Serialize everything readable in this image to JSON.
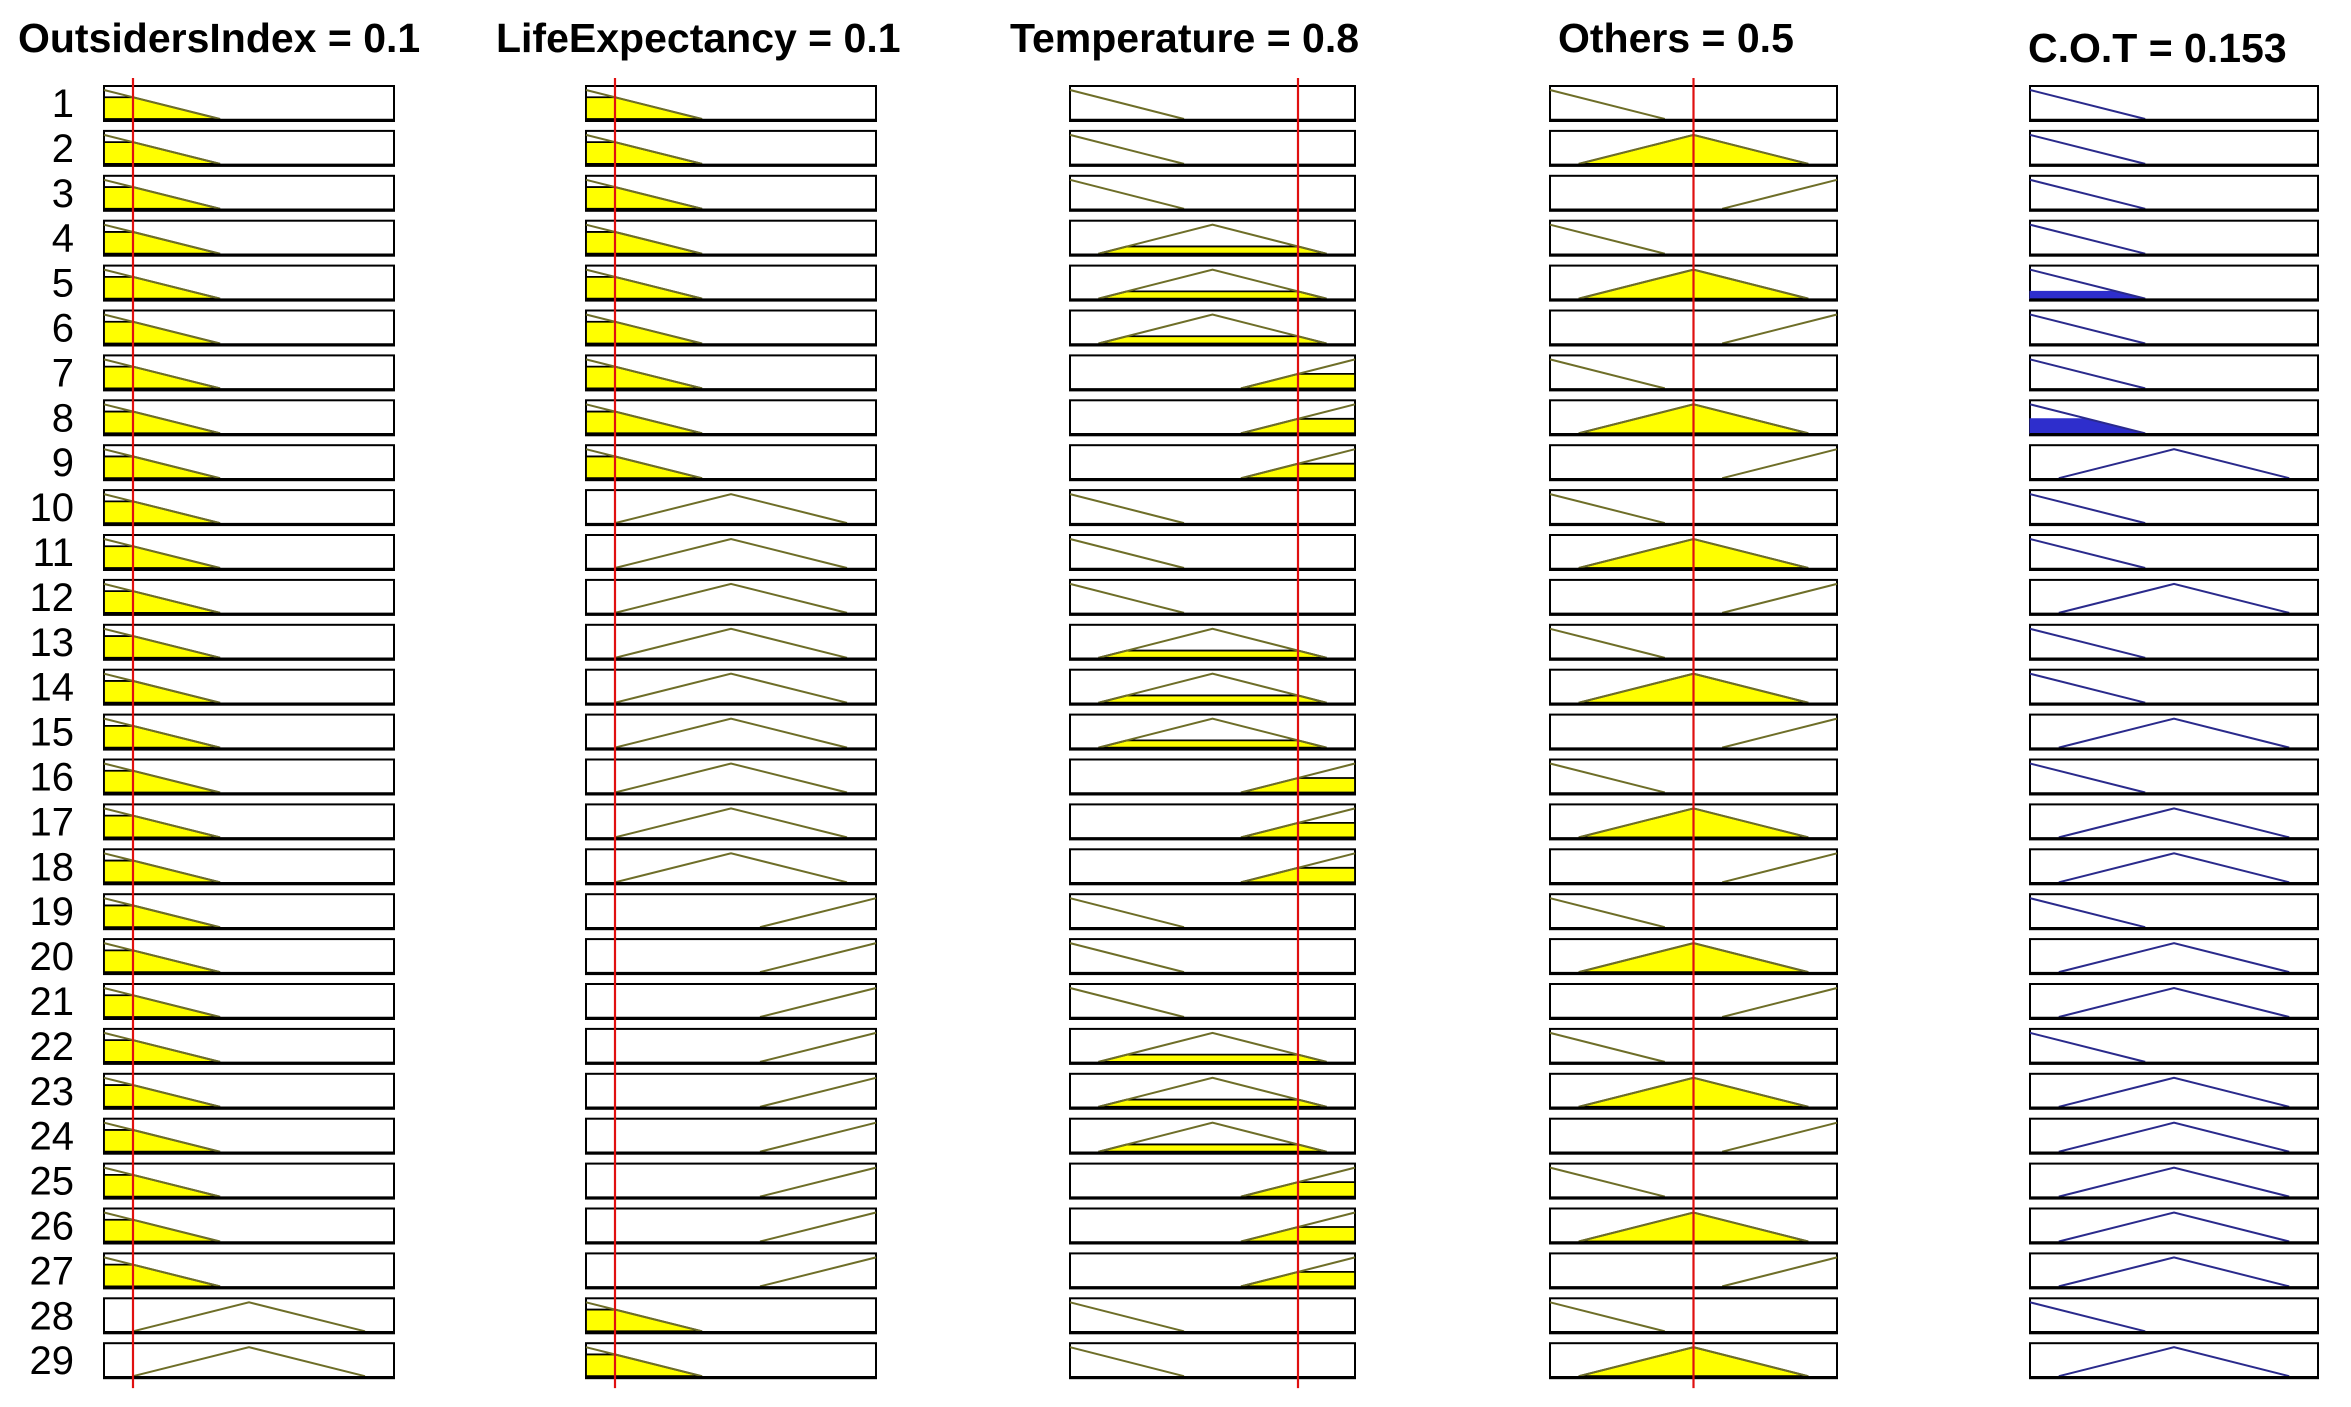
{
  "headers": {
    "outsiders": "OutsidersIndex = 0.1",
    "life": "LifeExpectancy = 0.1",
    "temperature": "Temperature = 0.8",
    "others": "Others = 0.5",
    "cot": "C.O.T = 0.153"
  },
  "inputs": [
    {
      "key": "outsiders",
      "value": 0.1
    },
    {
      "key": "life",
      "value": 0.1
    },
    {
      "key": "temperature",
      "value": 0.8
    },
    {
      "key": "others",
      "value": 0.5
    }
  ],
  "row_labels": [
    "1",
    "2",
    "3",
    "4",
    "5",
    "6",
    "7",
    "8",
    "9",
    "10",
    "11",
    "12",
    "13",
    "14",
    "15",
    "16",
    "17",
    "18",
    "19",
    "20",
    "21",
    "22",
    "23",
    "24",
    "25",
    "26",
    "27",
    "28",
    "29"
  ],
  "membership_shapes": {
    "low": [
      [
        0,
        1
      ],
      [
        0.4,
        0
      ]
    ],
    "mid": [
      [
        0.1,
        0
      ],
      [
        0.5,
        1
      ],
      [
        0.9,
        0
      ]
    ],
    "high": [
      [
        0.6,
        0
      ],
      [
        1,
        1
      ]
    ]
  },
  "rules": [
    [
      "low",
      "low",
      "low",
      "low",
      "low"
    ],
    [
      "low",
      "low",
      "low",
      "mid",
      "low"
    ],
    [
      "low",
      "low",
      "low",
      "high",
      "low"
    ],
    [
      "low",
      "low",
      "mid",
      "low",
      "low"
    ],
    [
      "low",
      "low",
      "mid",
      "mid",
      "low"
    ],
    [
      "low",
      "low",
      "mid",
      "high",
      "low"
    ],
    [
      "low",
      "low",
      "high",
      "low",
      "low"
    ],
    [
      "low",
      "low",
      "high",
      "mid",
      "low"
    ],
    [
      "low",
      "low",
      "high",
      "high",
      "mid"
    ],
    [
      "low",
      "mid",
      "low",
      "low",
      "low"
    ],
    [
      "low",
      "mid",
      "low",
      "mid",
      "low"
    ],
    [
      "low",
      "mid",
      "low",
      "high",
      "mid"
    ],
    [
      "low",
      "mid",
      "mid",
      "low",
      "low"
    ],
    [
      "low",
      "mid",
      "mid",
      "mid",
      "low"
    ],
    [
      "low",
      "mid",
      "mid",
      "high",
      "mid"
    ],
    [
      "low",
      "mid",
      "high",
      "low",
      "low"
    ],
    [
      "low",
      "mid",
      "high",
      "mid",
      "mid"
    ],
    [
      "low",
      "mid",
      "high",
      "high",
      "mid"
    ],
    [
      "low",
      "high",
      "low",
      "low",
      "low"
    ],
    [
      "low",
      "high",
      "low",
      "mid",
      "mid"
    ],
    [
      "low",
      "high",
      "low",
      "high",
      "mid"
    ],
    [
      "low",
      "high",
      "mid",
      "low",
      "low"
    ],
    [
      "low",
      "high",
      "mid",
      "mid",
      "mid"
    ],
    [
      "low",
      "high",
      "mid",
      "high",
      "mid"
    ],
    [
      "low",
      "high",
      "high",
      "low",
      "mid"
    ],
    [
      "low",
      "high",
      "high",
      "mid",
      "mid"
    ],
    [
      "low",
      "high",
      "high",
      "high",
      "mid"
    ],
    [
      "mid",
      "low",
      "low",
      "low",
      "low"
    ],
    [
      "mid",
      "low",
      "low",
      "mid",
      "mid"
    ]
  ],
  "cot_activation": [
    0,
    0,
    0,
    0,
    0.25,
    0,
    0,
    0.5,
    0,
    0,
    0,
    0,
    0,
    0,
    0,
    0,
    0,
    0,
    0,
    0,
    0,
    0,
    0,
    0,
    0,
    0,
    0,
    0,
    0
  ],
  "colors": {
    "box_border": "#000000",
    "input_fill": "#ffff00",
    "input_line": "#6e6e28",
    "output_line": "#2a2a8c",
    "output_fill": "#2e2ecc",
    "marker": "#e01010"
  }
}
